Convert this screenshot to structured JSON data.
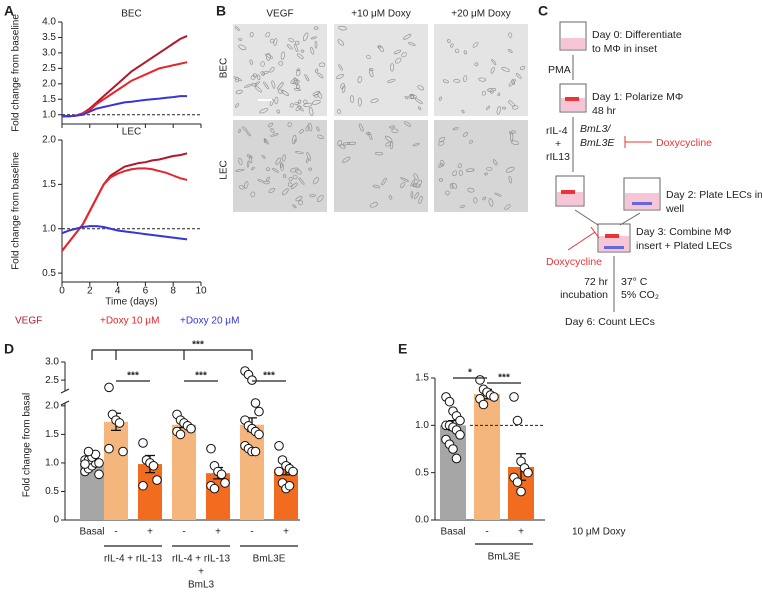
{
  "panel_labels": [
    "A",
    "B",
    "C",
    "D",
    "E"
  ],
  "micrographs": {
    "columns": [
      "VEGF",
      "+10 μM Doxy",
      "+20 μM Doxy"
    ],
    "rows": [
      "BEC",
      "LEC"
    ]
  },
  "diagram": {
    "day0": [
      "Day 0: Differentiate",
      "to MΦ in inset"
    ],
    "pma": "PMA",
    "day1": [
      "Day 1: Polarize MΦ",
      "48 hr"
    ],
    "cytokines": [
      "rIL-4",
      "+",
      "rIL13"
    ],
    "worms": [
      "BmL3/",
      "BmL3E"
    ],
    "doxy1": "Doxycycline",
    "day2": [
      "Day 2: Plate LECs in",
      "well"
    ],
    "doxy2": "Doxycycline",
    "day3": [
      "Day 3: Combine MΦ",
      "insert + Plated LECs"
    ],
    "incubation": [
      "72 hr",
      "incubation"
    ],
    "conditions": [
      "37° C",
      "5% CO₂"
    ],
    "day6": "Day 6: Count LECs"
  },
  "chart_data": [
    {
      "type": "line",
      "title": "BEC",
      "y_label": "Fold change from baseline",
      "show_xtick_labels": false,
      "x": [
        0,
        0.5,
        1,
        1.5,
        2,
        2.5,
        3,
        3.5,
        4,
        4.5,
        5,
        5.5,
        6,
        6.5,
        7,
        7.5,
        8,
        8.5,
        9
      ],
      "xlim": [
        0,
        10
      ],
      "xticks": [
        0,
        2,
        4,
        6,
        8,
        10
      ],
      "ylim": [
        0.7,
        4.0
      ],
      "yticks": [
        {
          "value": 1,
          "label": "1.0"
        },
        1.5,
        {
          "value": 2,
          "label": "2.0"
        },
        2.5,
        {
          "value": 3,
          "label": "3.0"
        },
        3.5,
        {
          "value": 4,
          "label": "4.0"
        }
      ],
      "reference_line": 1,
      "series": [
        {
          "name": "VEGF",
          "color": "#b2182b",
          "values": [
            0.95,
            0.95,
            0.97,
            1.05,
            1.2,
            1.4,
            1.6,
            1.8,
            2.0,
            2.2,
            2.4,
            2.55,
            2.7,
            2.85,
            3.0,
            3.15,
            3.3,
            3.45,
            3.55
          ]
        },
        {
          "name": "+Doxy 10 μM",
          "color": "#e8242a",
          "values": [
            0.95,
            0.95,
            0.97,
            1.05,
            1.15,
            1.35,
            1.5,
            1.65,
            1.8,
            1.95,
            2.1,
            2.2,
            2.3,
            2.4,
            2.5,
            2.55,
            2.6,
            2.65,
            2.7
          ]
        },
        {
          "name": "+Doxy 20 μM",
          "color": "#3535d8",
          "values": [
            0.95,
            0.95,
            0.97,
            1.0,
            1.1,
            1.2,
            1.25,
            1.3,
            1.35,
            1.4,
            1.42,
            1.45,
            1.48,
            1.5,
            1.52,
            1.55,
            1.57,
            1.6,
            1.6
          ]
        }
      ]
    },
    {
      "type": "line",
      "title": "LEC",
      "y_label": "Fold change from baseline",
      "x_label": "Time (days)",
      "x": [
        0,
        0.5,
        1,
        1.5,
        2,
        2.5,
        3,
        3.5,
        4,
        4.5,
        5,
        5.5,
        6,
        6.5,
        7,
        7.5,
        8,
        8.5,
        9
      ],
      "xlim": [
        0,
        10
      ],
      "xticks": [
        0,
        2,
        4,
        6,
        8,
        10
      ],
      "ylim": [
        0.4,
        2.0
      ],
      "yticks": [
        0.5,
        {
          "value": 1,
          "label": "1.0"
        },
        1.5,
        {
          "value": 2,
          "label": "2.0"
        }
      ],
      "reference_line": 1,
      "series": [
        {
          "color": "#b2182b",
          "values": [
            0.75,
            0.85,
            0.95,
            1.05,
            1.2,
            1.35,
            1.5,
            1.6,
            1.65,
            1.7,
            1.72,
            1.74,
            1.75,
            1.77,
            1.78,
            1.8,
            1.82,
            1.83,
            1.85
          ]
        },
        {
          "color": "#e8242a",
          "values": [
            0.75,
            0.85,
            0.95,
            1.05,
            1.2,
            1.35,
            1.5,
            1.58,
            1.62,
            1.65,
            1.67,
            1.68,
            1.68,
            1.67,
            1.65,
            1.63,
            1.6,
            1.57,
            1.55
          ]
        },
        {
          "color": "#3535d8",
          "values": [
            0.95,
            0.98,
            1.0,
            1.02,
            1.03,
            1.03,
            1.02,
            1.0,
            0.98,
            0.97,
            0.96,
            0.95,
            0.94,
            0.93,
            0.92,
            0.91,
            0.9,
            0.89,
            0.88
          ]
        }
      ]
    },
    {
      "type": "bar",
      "y_label": "Fold change from basal",
      "categories": [
        "Basal",
        "-",
        "+",
        "-",
        "+",
        "-",
        "+"
      ],
      "colors": [
        "#a6a6a6",
        "#f4b67c",
        "#f26c1f",
        "#f4b67c",
        "#f26c1f",
        "#f4b67c",
        "#f26c1f"
      ],
      "values": [
        1.0,
        1.72,
        0.98,
        1.67,
        0.82,
        1.67,
        0.89
      ],
      "errors": [
        0.05,
        0.15,
        0.15,
        0.05,
        0.1,
        0.12,
        0.1
      ],
      "points": [
        [
          0.85,
          0.9,
          0.95,
          1.0,
          1.0,
          1.05,
          1.05,
          1.1,
          1.15,
          0.8,
          0.98,
          1.2
        ],
        [
          2.3,
          1.85,
          1.75,
          1.7,
          1.2,
          1.25
        ],
        [
          1.35,
          1.05,
          1.0,
          0.95,
          0.7,
          0.6
        ],
        [
          1.85,
          1.75,
          1.7,
          1.65,
          1.6,
          1.55,
          1.5
        ],
        [
          1.25,
          0.95,
          0.85,
          0.8,
          0.65,
          0.6,
          0.55
        ],
        [
          2.75,
          2.65,
          2.5,
          2.05,
          1.9,
          1.75,
          1.65,
          1.6,
          1.55,
          1.5,
          1.3,
          1.25,
          1.2,
          1.2
        ],
        [
          1.3,
          1.05,
          0.95,
          0.9,
          0.85,
          0.85,
          0.65,
          0.55,
          0.6
        ]
      ],
      "groups": [
        {
          "label_lines": [
            "rIL-4 + rIL-13"
          ],
          "members": [
            1,
            2
          ]
        },
        {
          "label_lines": [
            "rIL-4 + rIL-13",
            "+",
            "BmL3"
          ],
          "members": [
            3,
            4
          ]
        },
        {
          "label_lines": [
            "BmL3E"
          ],
          "members": [
            5,
            6
          ]
        }
      ],
      "ylim": [
        0,
        2.05
      ],
      "yticks": [
        0,
        0.5,
        {
          "value": 1,
          "label": "1.0"
        },
        1.5,
        {
          "value": 2,
          "label": "2.0"
        }
      ],
      "upper_ylim": [
        2.2,
        3.0
      ],
      "upper_yticks": [
        2.5,
        {
          "value": 3,
          "label": "3.0"
        }
      ],
      "comparisons": [
        {
          "bars": [
            0,
            1,
            3,
            5
          ],
          "label": "***"
        },
        {
          "bars": [
            1,
            2
          ],
          "label": "***"
        },
        {
          "bars": [
            3,
            4
          ],
          "label": "***"
        },
        {
          "bars": [
            5,
            6
          ],
          "label": "***"
        }
      ]
    },
    {
      "type": "bar",
      "categories": [
        "Basal",
        "-",
        "+"
      ],
      "colors": [
        "#a6a6a6",
        "#f4b67c",
        "#f26c1f"
      ],
      "values": [
        1.0,
        1.33,
        0.56
      ],
      "errors": [
        0.05,
        0.05,
        0.14
      ],
      "points": [
        [
          1.3,
          1.25,
          1.15,
          1.1,
          1.05,
          1.0,
          1.0,
          0.98,
          0.95,
          0.9,
          0.85,
          0.8,
          0.75,
          0.65
        ],
        [
          1.48,
          1.38,
          1.35,
          1.32,
          1.3,
          1.28,
          1.22
        ],
        [
          1.3,
          1.05,
          0.62,
          0.55,
          0.5,
          0.45,
          0.4,
          0.3
        ]
      ],
      "groups": [
        {
          "label_lines": [
            "BmL3E"
          ],
          "members": [
            1,
            2
          ]
        }
      ],
      "treatment_label": "10 μM Doxy",
      "ylim": [
        0,
        1.5
      ],
      "yticks": [
        {
          "value": 0,
          "label": "0.0"
        },
        0.5,
        {
          "value": 1,
          "label": "1.0"
        },
        1.5
      ],
      "reference_line": 1,
      "comparisons": [
        {
          "bars": [
            0,
            1
          ],
          "label": "*"
        },
        {
          "bars": [
            1,
            2
          ],
          "label": "***"
        }
      ]
    }
  ]
}
